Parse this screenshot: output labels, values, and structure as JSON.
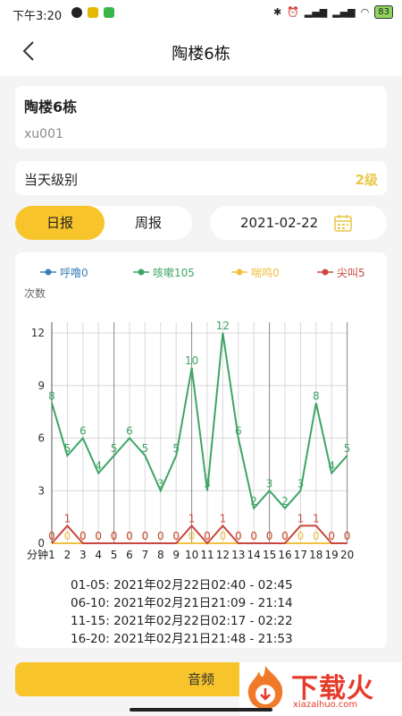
{
  "status": {
    "time": "下午3:20",
    "battery": "83"
  },
  "nav": {
    "title": "陶楼6栋"
  },
  "info": {
    "building": "陶楼6栋",
    "code": "xu001"
  },
  "level": {
    "label": "当天级别",
    "value": "2级",
    "color": "#e9c84a"
  },
  "tabs": [
    {
      "label": "日报",
      "active": true
    },
    {
      "label": "周报",
      "active": false
    }
  ],
  "date": "2021-02-22",
  "chart_data": {
    "type": "line",
    "legend": [
      {
        "name": "呼噜0",
        "color": "#3b7fb8"
      },
      {
        "name": "咳嗽105",
        "color": "#3da564"
      },
      {
        "name": "喘鸣0",
        "color": "#f0c040"
      },
      {
        "name": "尖叫5",
        "color": "#c9483e"
      }
    ],
    "ylabel": "次数",
    "xlabel": "分钟",
    "ylim": [
      0,
      13
    ],
    "yticks": [
      0,
      3,
      6,
      9,
      12
    ],
    "x": [
      1,
      2,
      3,
      4,
      5,
      6,
      7,
      8,
      9,
      10,
      11,
      12,
      13,
      14,
      15,
      16,
      17,
      18,
      19,
      20
    ],
    "series": [
      {
        "name": "呼噜0",
        "color": "#3b7fb8",
        "values": [
          0,
          0,
          0,
          0,
          0,
          0,
          0,
          0,
          0,
          0,
          0,
          0,
          0,
          0,
          0,
          0,
          0,
          0,
          0,
          0
        ],
        "labels": false
      },
      {
        "name": "咳嗽105",
        "color": "#3da564",
        "values": [
          8,
          5,
          6,
          4,
          5,
          6,
          5,
          3,
          5,
          10,
          3,
          12,
          6,
          2,
          3,
          2,
          3,
          8,
          4,
          5
        ],
        "labels": true
      },
      {
        "name": "喘鸣0",
        "color": "#f0c040",
        "values": [
          0,
          0,
          0,
          0,
          0,
          0,
          0,
          0,
          0,
          0,
          0,
          0,
          0,
          0,
          0,
          0,
          0,
          0,
          0,
          0
        ],
        "labels": true
      },
      {
        "name": "尖叫5",
        "color": "#c9483e",
        "values": [
          0,
          1,
          0,
          0,
          0,
          0,
          0,
          0,
          0,
          1,
          0,
          1,
          0,
          0,
          0,
          0,
          1,
          1,
          0,
          0
        ],
        "labels": true
      }
    ]
  },
  "ranges": [
    "01-05: 2021年02月22日02:40 - 02:45",
    "06-10: 2021年02月21日21:09 - 21:14",
    "11-15: 2021年02月22日02:17 - 02:22",
    "16-20: 2021年02月21日21:48 - 21:53"
  ],
  "audio_button": "音频",
  "watermark": {
    "text": "下载火",
    "sub": "xiazaihuo.com"
  }
}
